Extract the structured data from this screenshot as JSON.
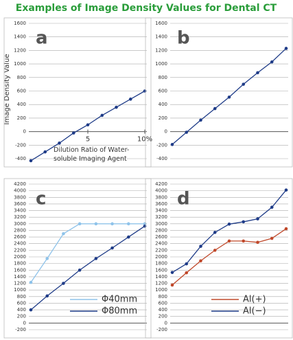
{
  "title": "Examples of Image Density Values for Dental CT",
  "ylabel": "Image Density Value",
  "chart_data": [
    {
      "type": "line",
      "label": "a",
      "xlabel": [
        "Dilution Ratio of Water-",
        "soluble Imaging Agent"
      ],
      "x": [
        0,
        1.25,
        2.5,
        3.75,
        5,
        6.25,
        7.5,
        8.75,
        10
      ],
      "xlim": [
        0,
        10
      ],
      "xticks": [
        5,
        {
          "value": 10,
          "label": "10%"
        }
      ],
      "ylim": [
        -400,
        1600
      ],
      "yticks": [
        -400,
        -200,
        0,
        200,
        400,
        600,
        800,
        1000,
        1200,
        1400,
        1600
      ],
      "grid": true,
      "series": [
        {
          "color": "#1f3c88",
          "values": [
            -430,
            -300,
            -170,
            -20,
            100,
            240,
            360,
            480,
            600
          ]
        }
      ]
    },
    {
      "type": "line",
      "label": "b",
      "x": [
        0,
        1.25,
        2.5,
        3.75,
        5,
        6.25,
        7.5,
        8.75,
        10
      ],
      "xlim": [
        0,
        10
      ],
      "ylim": [
        -400,
        1600
      ],
      "yticks": [
        -400,
        -200,
        0,
        200,
        400,
        600,
        800,
        1000,
        1200,
        1400,
        1600
      ],
      "grid": true,
      "series": [
        {
          "color": "#1f3c88",
          "values": [
            -190,
            -10,
            170,
            340,
            510,
            700,
            870,
            1030,
            1230
          ]
        }
      ]
    },
    {
      "type": "line",
      "label": "c",
      "legend": "lower right",
      "x": [
        0,
        1,
        2,
        3,
        4,
        5,
        6,
        7
      ],
      "xlim": [
        0,
        7
      ],
      "ylim": [
        -200,
        4200
      ],
      "yticks": [
        -200,
        0,
        200,
        400,
        600,
        800,
        1000,
        1200,
        1400,
        1600,
        1800,
        2000,
        2200,
        2400,
        2600,
        2800,
        3000,
        3200,
        3400,
        3600,
        3800,
        4000,
        4200
      ],
      "grid": true,
      "series": [
        {
          "name": "Φ40mm",
          "color": "#8fc3ea",
          "values": [
            1230,
            1950,
            2700,
            3000,
            3000,
            3000,
            3000,
            3000
          ]
        },
        {
          "name": "Φ80mm",
          "color": "#1f3c88",
          "values": [
            400,
            820,
            1200,
            1600,
            1950,
            2270,
            2600,
            2930
          ]
        }
      ]
    },
    {
      "type": "line",
      "label": "d",
      "legend": "lower right",
      "x": [
        0,
        1,
        2,
        3,
        4,
        5,
        6,
        7,
        8
      ],
      "xlim": [
        0,
        8
      ],
      "ylim": [
        -200,
        4200
      ],
      "yticks": [
        -200,
        0,
        200,
        400,
        600,
        800,
        1000,
        1200,
        1400,
        1600,
        1800,
        2000,
        2200,
        2400,
        2600,
        2800,
        3000,
        3200,
        3400,
        3600,
        3800,
        4000,
        4200
      ],
      "grid": true,
      "series": [
        {
          "name": "Al(+)",
          "color": "#c0482a",
          "values": [
            1150,
            1520,
            1880,
            2200,
            2480,
            2480,
            2440,
            2560,
            2850
          ]
        },
        {
          "name": "Al(−)",
          "color": "#1f3c88",
          "values": [
            1530,
            1790,
            2320,
            2740,
            2990,
            3060,
            3150,
            3500,
            4020
          ]
        }
      ]
    }
  ]
}
